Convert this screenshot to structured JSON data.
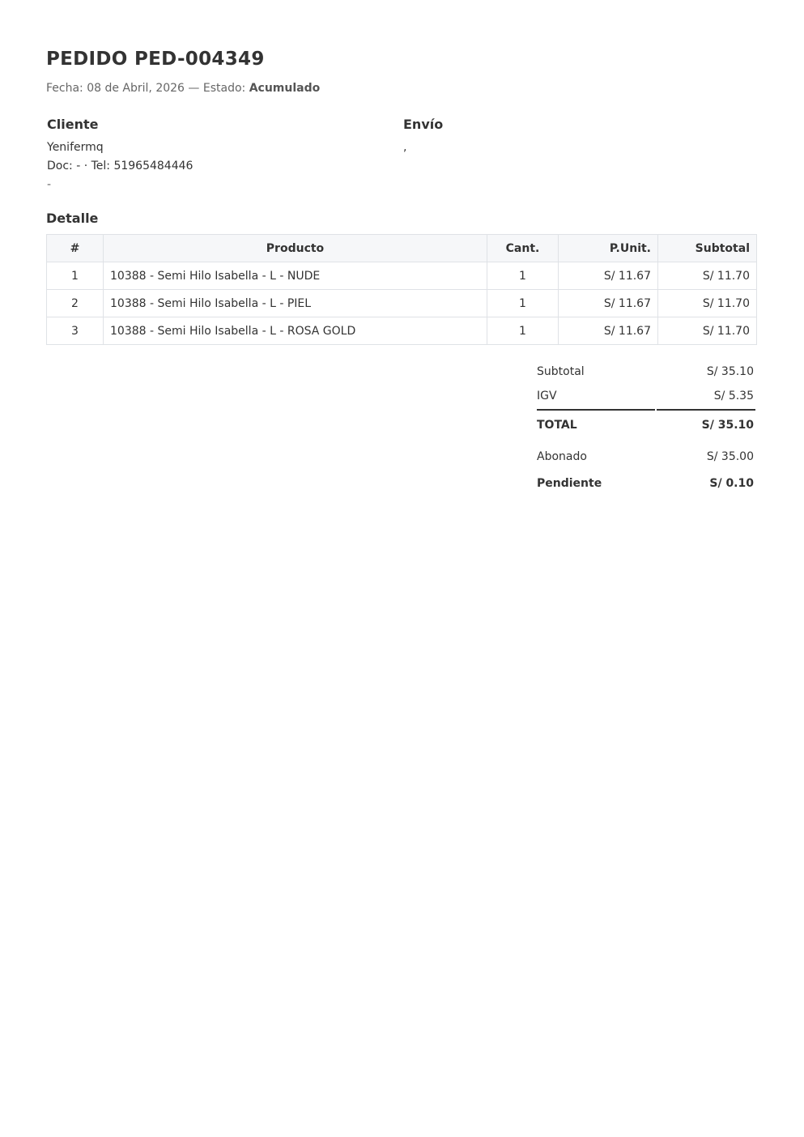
{
  "header": {
    "title": "PEDIDO PED-004349",
    "fecha_label": "Fecha: 08 de Abril, 2026 — Estado: ",
    "estado": "Acumulado"
  },
  "cliente": {
    "heading": "Cliente",
    "name": "Yenifermq",
    "doc": "Doc: - · Tel: 51965484446",
    "extra": "-"
  },
  "envio": {
    "heading": "Envío",
    "address": ","
  },
  "detalle": {
    "heading": "Detalle",
    "columns": [
      "#",
      "Producto",
      "Cant.",
      "P.Unit.",
      "Subtotal"
    ],
    "rows": [
      [
        "1",
        "10388 - Semi Hilo Isabella - L - NUDE",
        "1",
        "S/ 11.67",
        "S/ 11.70"
      ],
      [
        "2",
        "10388 - Semi Hilo Isabella - L - PIEL",
        "1",
        "S/ 11.67",
        "S/ 11.70"
      ],
      [
        "3",
        "10388 - Semi Hilo Isabella - L - ROSA GOLD",
        "1",
        "S/ 11.67",
        "S/ 11.70"
      ]
    ]
  },
  "totals": {
    "subtotal": {
      "label": "Subtotal",
      "value": "S/ 35.10"
    },
    "igv": {
      "label": "IGV",
      "value": "S/ 5.35"
    },
    "total": {
      "label": "TOTAL",
      "value": "S/ 35.10"
    },
    "abonado": {
      "label": "Abonado",
      "value": "S/ 35.00"
    },
    "pendiente": {
      "label": "Pendiente",
      "value": "S/ 0.10"
    }
  }
}
